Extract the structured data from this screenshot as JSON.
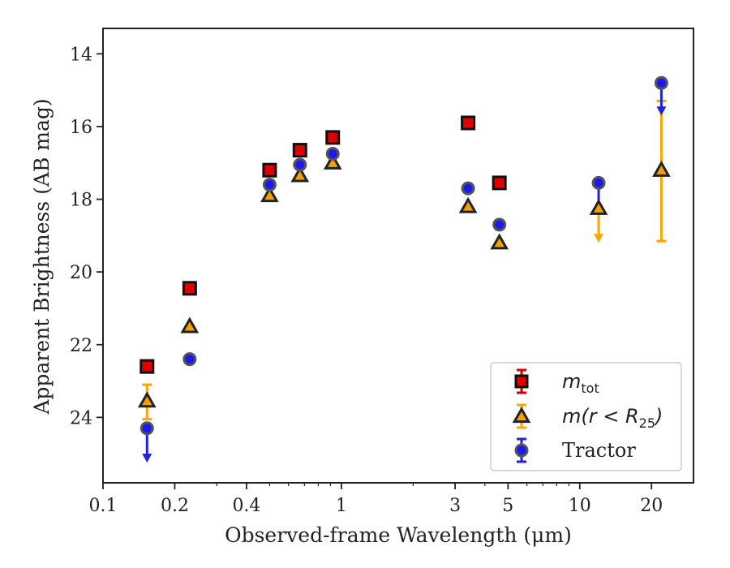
{
  "chart_data": {
    "type": "scatter",
    "xlabel": "Observed-frame Wavelength (μm)",
    "ylabel": "Apparent Brightness (AB mag)",
    "xscale": "log",
    "xlim": [
      0.1,
      30
    ],
    "ylim": [
      25.8,
      13.3
    ],
    "y_inverted": true,
    "grid": false,
    "legend_placement": "lower-right",
    "x_tick_labels": [
      "0.1",
      "0.2",
      "0.4",
      "1",
      "3",
      "5",
      "10",
      "20"
    ],
    "x_ticks": [
      0.1,
      0.2,
      0.4,
      1,
      3,
      5,
      10,
      20
    ],
    "y_ticks": [
      14,
      16,
      18,
      20,
      22,
      24
    ],
    "series": [
      {
        "key": "mtot",
        "legend_main": "m",
        "legend_sub": "tot",
        "marker": "square",
        "color": "#e00000",
        "edge": "#111111",
        "err_color": "#d40000",
        "points": [
          {
            "x": 0.153,
            "y": 22.6
          },
          {
            "x": 0.231,
            "y": 20.45
          },
          {
            "x": 0.5,
            "y": 17.2
          },
          {
            "x": 0.67,
            "y": 16.65
          },
          {
            "x": 0.92,
            "y": 16.3
          },
          {
            "x": 3.4,
            "y": 15.9
          },
          {
            "x": 4.6,
            "y": 17.55
          }
        ]
      },
      {
        "key": "mr25",
        "legend_main": "m(r < R",
        "legend_sub": "25",
        "legend_tail": ")",
        "marker": "triangle",
        "color": "#f5a000",
        "edge": "#222222",
        "err_color": "#ffa500",
        "points": [
          {
            "x": 0.153,
            "y": 23.55,
            "err_lo": 23.1,
            "err_hi": 24.05
          },
          {
            "x": 0.231,
            "y": 21.5
          },
          {
            "x": 0.5,
            "y": 17.9
          },
          {
            "x": 0.67,
            "y": 17.35
          },
          {
            "x": 0.92,
            "y": 17.0
          },
          {
            "x": 3.4,
            "y": 18.2
          },
          {
            "x": 4.6,
            "y": 19.2
          },
          {
            "x": 12.0,
            "y": 18.25,
            "upper_limit_to": 19.15
          },
          {
            "x": 22.0,
            "y": 17.2,
            "err_lo": 15.3,
            "err_hi": 19.15
          }
        ]
      },
      {
        "key": "tractor",
        "legend_main": "Tractor",
        "marker": "circle",
        "color": "#1a1aee",
        "edge": "#555555",
        "err_color": "#2222dd",
        "points": [
          {
            "x": 0.153,
            "y": 24.3,
            "upper_limit_to": 25.2
          },
          {
            "x": 0.231,
            "y": 22.4
          },
          {
            "x": 0.5,
            "y": 17.6
          },
          {
            "x": 0.67,
            "y": 17.05
          },
          {
            "x": 0.92,
            "y": 16.75
          },
          {
            "x": 3.4,
            "y": 17.7
          },
          {
            "x": 4.6,
            "y": 18.7
          },
          {
            "x": 12.0,
            "y": 17.55,
            "err_hi": 18.1
          },
          {
            "x": 22.0,
            "y": 14.8,
            "upper_limit_to": 15.65
          }
        ]
      }
    ]
  }
}
